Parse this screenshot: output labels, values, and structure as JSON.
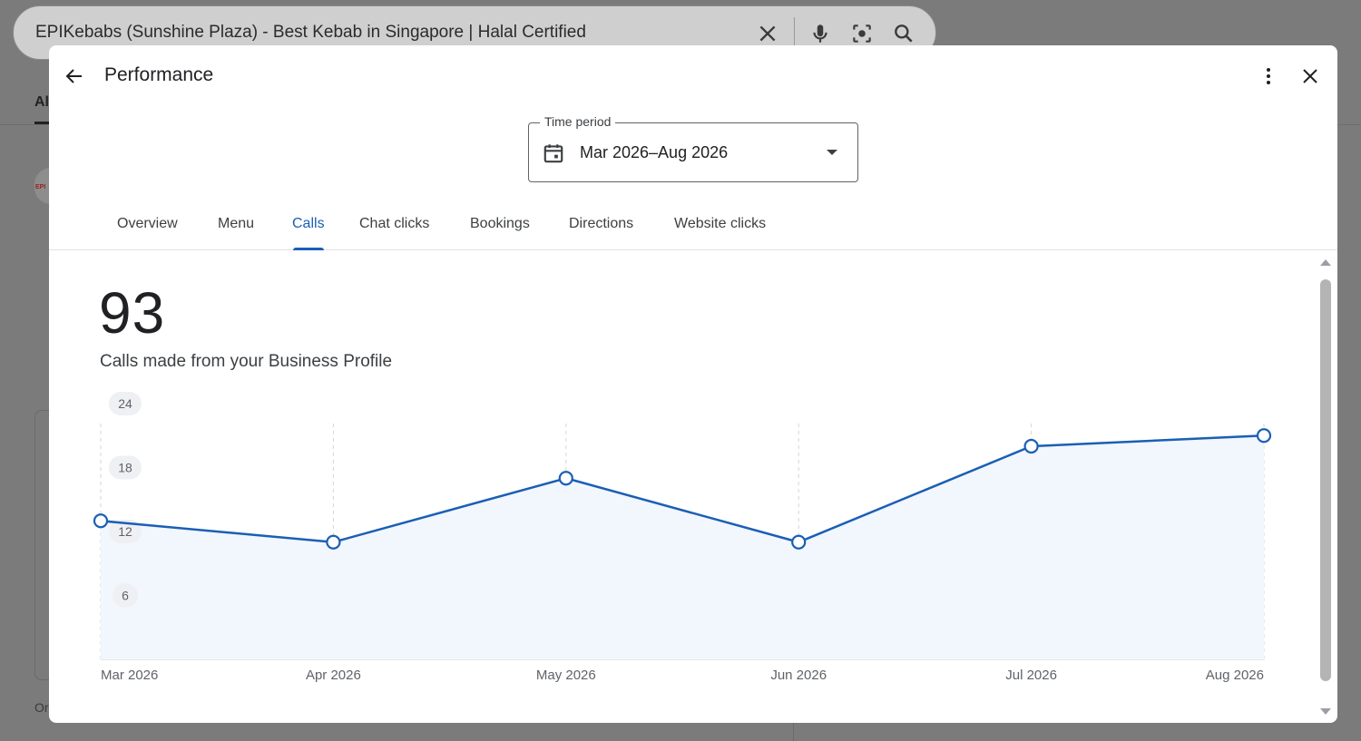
{
  "background": {
    "search_query": "EPIKebabs (Sunshine Plaza) - Best Kebab in Singapore | Halal Certified",
    "tab_label": "Al",
    "logo_text": "EPI",
    "footer_text": "Or"
  },
  "modal": {
    "title": "Performance",
    "time_period": {
      "label": "Time period",
      "value": "Mar 2026–Aug 2026"
    },
    "tabs": [
      {
        "label": "Overview",
        "active": false
      },
      {
        "label": "Menu",
        "active": false
      },
      {
        "label": "Calls",
        "active": true
      },
      {
        "label": "Chat clicks",
        "active": false
      },
      {
        "label": "Bookings",
        "active": false
      },
      {
        "label": "Directions",
        "active": false
      },
      {
        "label": "Website clicks",
        "active": false
      }
    ],
    "metric": {
      "value": "93",
      "description": "Calls made from your Business Profile"
    }
  },
  "chart_data": {
    "type": "area",
    "x": [
      "Mar 2026",
      "Apr 2026",
      "May 2026",
      "Jun 2026",
      "Jul 2026",
      "Aug 2026"
    ],
    "series": [
      {
        "values": [
          13,
          11,
          17,
          11,
          20,
          21
        ],
        "color": "#1a5fb4"
      }
    ],
    "y_ticks": [
      "6",
      "12",
      "18",
      "24"
    ],
    "ylim": [
      0,
      24
    ],
    "grid": "vertical dashed"
  },
  "colors": {
    "accent": "#1a5fb4",
    "area_fill": "#f2f6fd"
  }
}
